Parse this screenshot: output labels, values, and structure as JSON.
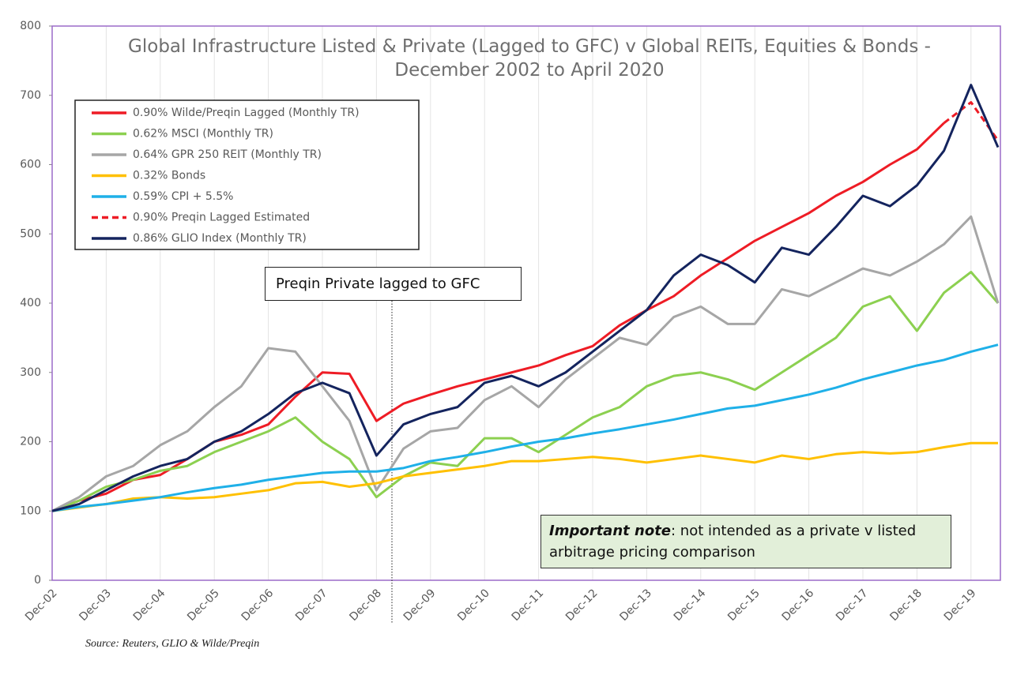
{
  "chart_data": {
    "type": "line",
    "title": "Global Infrastructure Listed & Private (Lagged to GFC) v Global REITs, Equities & Bonds - December 2002 to April 2020",
    "source": "Source: Reuters, GLIO & Wilde/Preqin",
    "annotation": "Preqin Private lagged to GFC",
    "note": {
      "label": "Important note",
      "text": ": not intended as a private v listed arbitrage pricing comparison"
    },
    "categories": [
      "Dec-02",
      null,
      "Dec-03",
      null,
      "Dec-04",
      null,
      "Dec-05",
      null,
      "Dec-06",
      null,
      "Dec-07",
      null,
      "Dec-08",
      null,
      "Dec-09",
      null,
      "Dec-10",
      null,
      "Dec-11",
      null,
      "Dec-12",
      null,
      "Dec-13",
      null,
      "Dec-14",
      null,
      "Dec-15",
      null,
      "Dec-16",
      null,
      "Dec-17",
      null,
      "Dec-18",
      null,
      "Dec-19",
      null
    ],
    "ylim": [
      0,
      800
    ],
    "yticks": [
      0,
      100,
      200,
      300,
      400,
      500,
      600,
      700,
      800
    ],
    "grid": true,
    "series": [
      {
        "name": "0.90%  Wilde/Preqin Lagged (Monthly TR)",
        "color": "#ee1c25",
        "values": [
          100,
          115,
          125,
          145,
          152,
          175,
          200,
          210,
          225,
          265,
          300,
          298,
          230,
          255,
          268,
          280,
          290,
          300,
          310,
          325,
          338,
          368,
          390,
          410,
          440,
          465,
          490,
          510,
          530,
          555,
          575,
          600,
          622,
          660,
          null,
          null
        ]
      },
      {
        "name": "0.62% MSCI (Monthly TR)",
        "color": "#8cd050",
        "values": [
          100,
          115,
          135,
          145,
          158,
          165,
          185,
          200,
          215,
          235,
          200,
          175,
          120,
          150,
          170,
          165,
          205,
          205,
          185,
          210,
          235,
          250,
          280,
          295,
          300,
          290,
          275,
          300,
          325,
          350,
          395,
          410,
          360,
          415,
          445,
          400
        ]
      },
      {
        "name": "0.64% GPR 250 REIT (Monthly TR)",
        "color": "#a6a6a6",
        "values": [
          100,
          120,
          150,
          165,
          195,
          215,
          250,
          280,
          335,
          330,
          280,
          230,
          130,
          190,
          215,
          220,
          260,
          280,
          250,
          290,
          320,
          350,
          340,
          380,
          395,
          370,
          370,
          420,
          410,
          430,
          450,
          440,
          460,
          485,
          525,
          400
        ]
      },
      {
        "name": "0.32% Bonds",
        "color": "#ffc000",
        "values": [
          100,
          105,
          110,
          118,
          120,
          118,
          120,
          125,
          130,
          140,
          142,
          135,
          140,
          150,
          155,
          160,
          165,
          172,
          172,
          175,
          178,
          175,
          170,
          175,
          180,
          175,
          170,
          180,
          175,
          182,
          185,
          183,
          185,
          192,
          198,
          198
        ]
      },
      {
        "name": "0.59% CPI + 5.5%",
        "color": "#1fb0e8",
        "values": [
          100,
          106,
          110,
          115,
          120,
          127,
          133,
          138,
          145,
          150,
          155,
          157,
          157,
          162,
          172,
          178,
          185,
          193,
          200,
          205,
          212,
          218,
          225,
          232,
          240,
          248,
          252,
          260,
          268,
          278,
          290,
          300,
          310,
          318,
          330,
          340
        ]
      },
      {
        "name": "0.90% Preqin Lagged Estimated",
        "color": "#ee1c25",
        "dashed": true,
        "values": [
          null,
          null,
          null,
          null,
          null,
          null,
          null,
          null,
          null,
          null,
          null,
          null,
          null,
          null,
          null,
          null,
          null,
          null,
          null,
          null,
          null,
          null,
          null,
          null,
          null,
          null,
          null,
          null,
          null,
          null,
          null,
          null,
          null,
          660,
          690,
          635
        ]
      },
      {
        "name": "0.86% GLIO Index (Monthly TR)",
        "color": "#14245e",
        "values": [
          100,
          110,
          130,
          150,
          165,
          175,
          200,
          215,
          240,
          270,
          285,
          270,
          180,
          225,
          240,
          250,
          285,
          295,
          280,
          300,
          330,
          360,
          390,
          440,
          470,
          455,
          430,
          480,
          470,
          510,
          555,
          540,
          570,
          620,
          715,
          625
        ]
      }
    ]
  }
}
